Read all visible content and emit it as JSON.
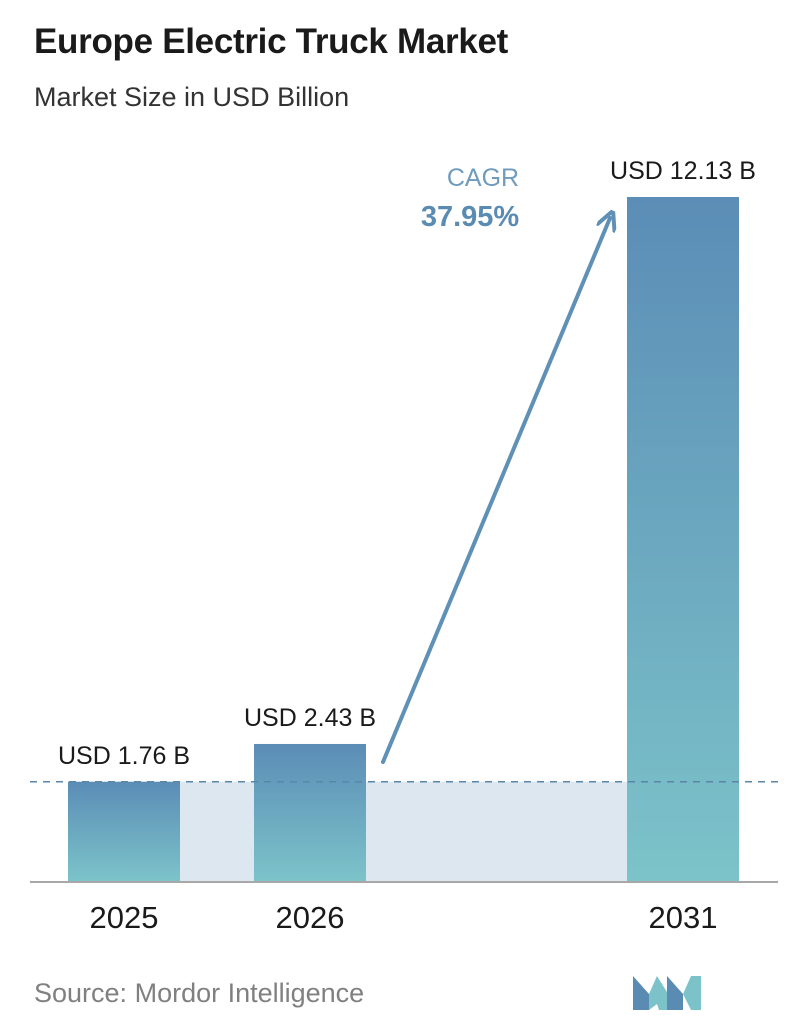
{
  "title": "Europe Electric Truck Market",
  "subtitle": "Market Size in USD Billion",
  "source": {
    "label": "Source:",
    "name": "Mordor Intelligence"
  },
  "cagr": {
    "label": "CAGR",
    "value": "37.95%"
  },
  "colors": {
    "bar_top": "#5b8db6",
    "bar_bottom": "#7cc3c9",
    "band": "#dde7f0",
    "arrow": "#5f90b5",
    "dashed": "#5a86a8",
    "cagr_label": "#6f9bbd",
    "cagr_value": "#5a8cb3",
    "logo_a": "#5a8cb3",
    "logo_b": "#7cc3c9"
  },
  "chart_data": {
    "type": "bar",
    "categories": [
      "2025",
      "2026",
      "2031"
    ],
    "values": [
      1.76,
      2.43,
      12.13
    ],
    "data_labels": [
      "USD 1.76 B",
      "USD 2.43 B",
      "USD 12.13 B"
    ],
    "ylim": [
      0,
      12.13
    ],
    "grid": false,
    "reference_line_value": 1.76
  }
}
